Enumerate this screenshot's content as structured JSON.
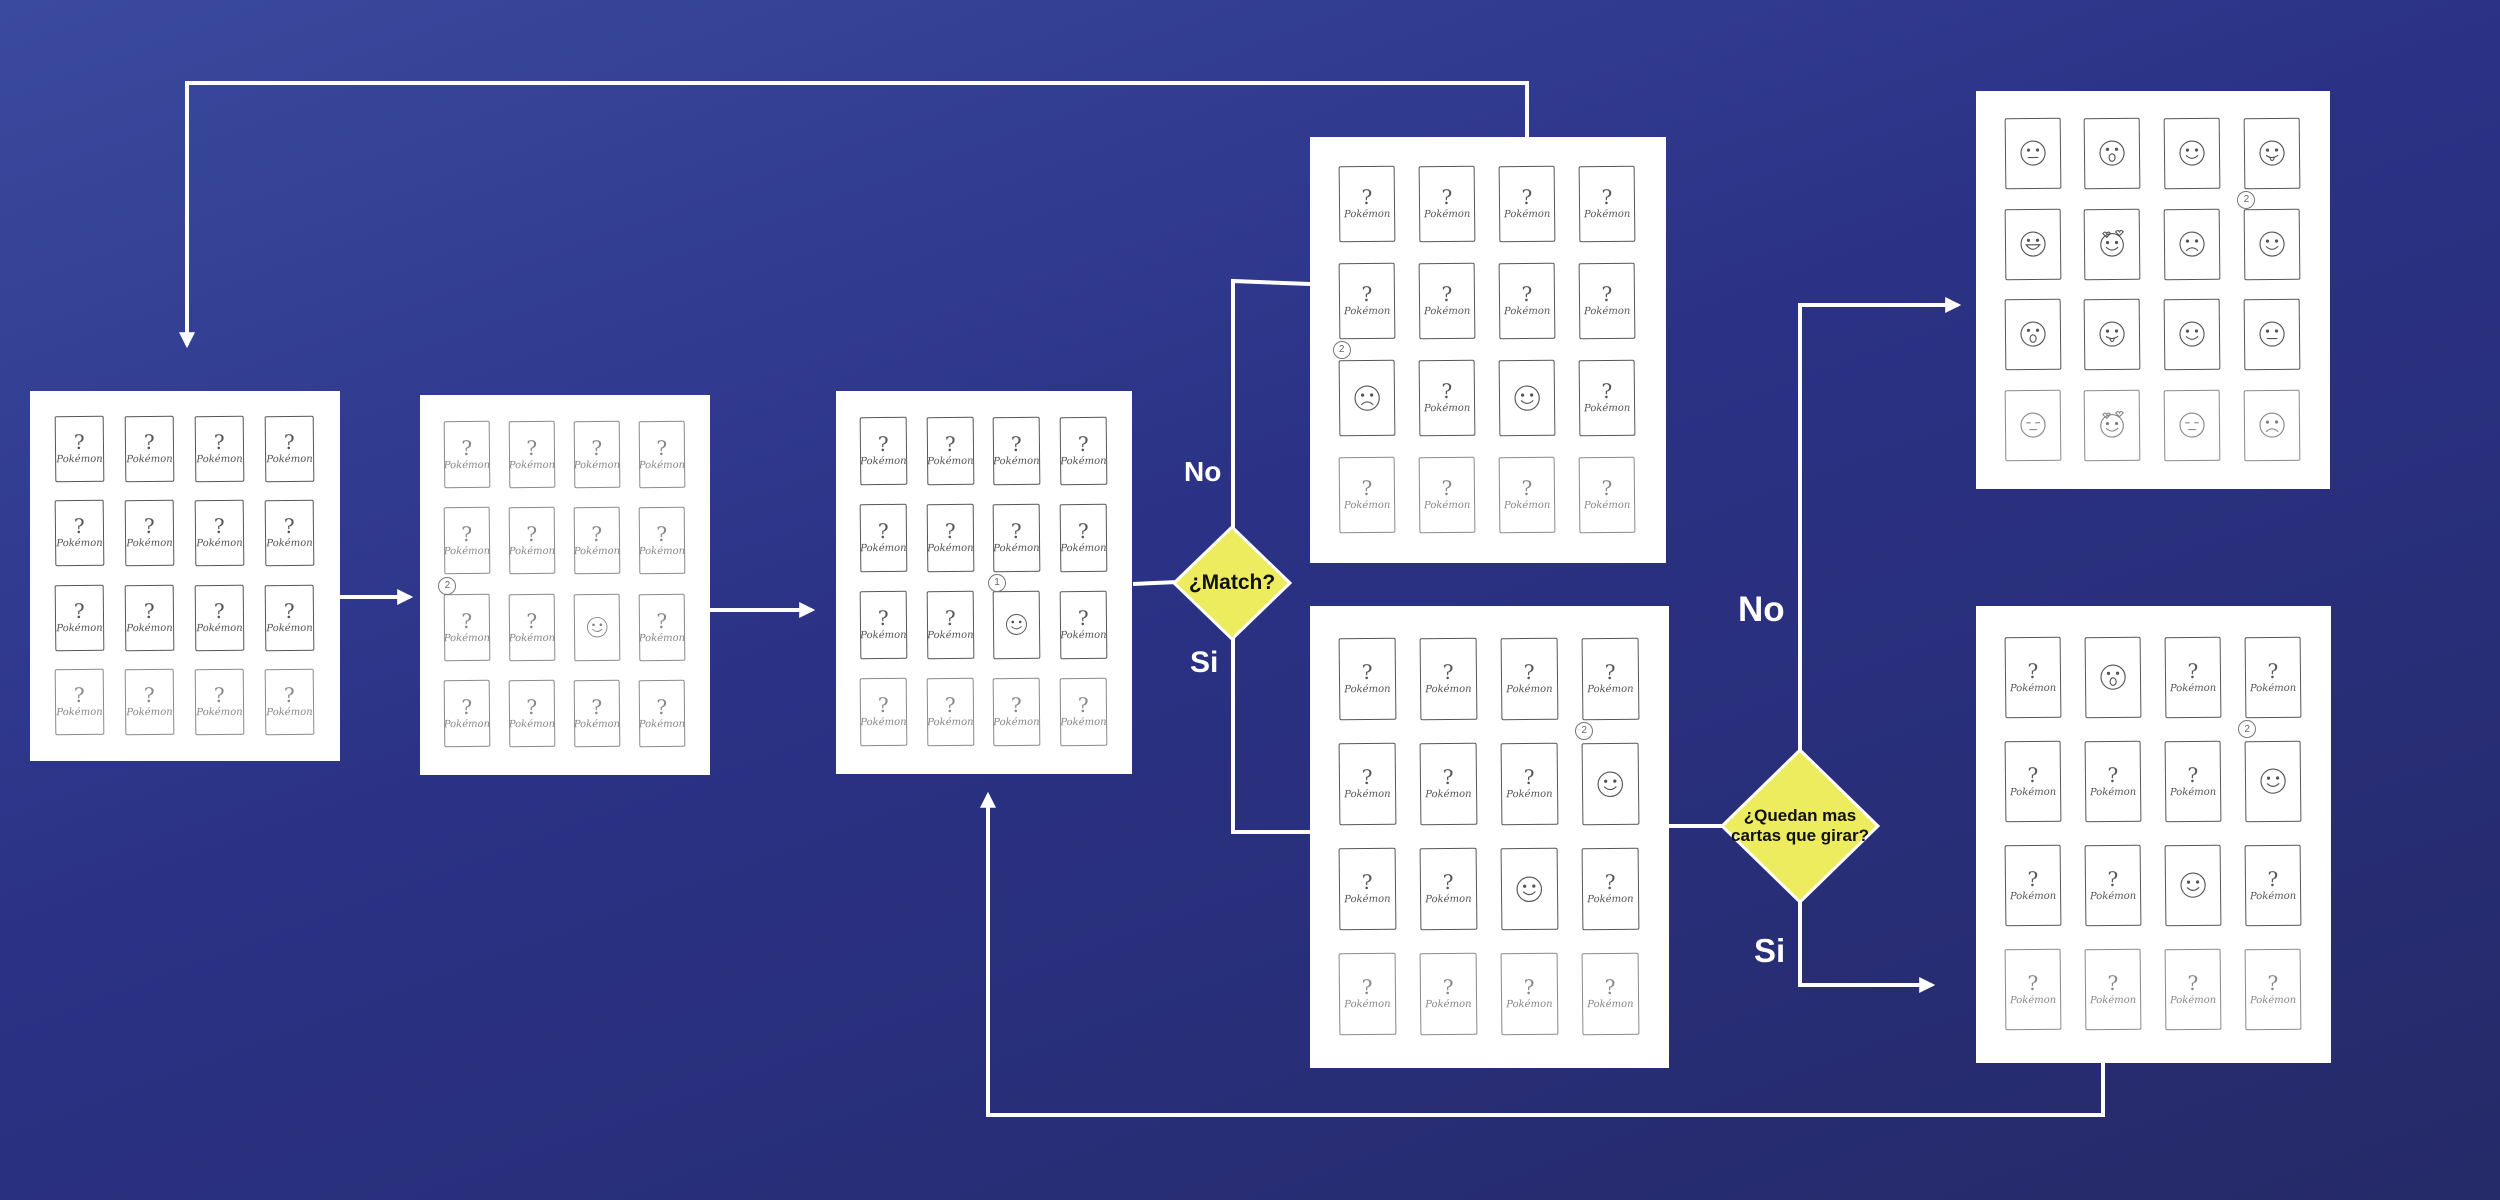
{
  "colors": {
    "background_top": "#3a4a9e",
    "background_bottom": "#252a68",
    "connector": "#ffffff",
    "decision_fill": "#ecec5e",
    "card_stroke": "#555555"
  },
  "card_label": "Pokémon",
  "card_symbol": "?",
  "decisions": {
    "match": "¿Match?",
    "remaining": "¿Quedan mas cartas que girar?"
  },
  "edge_labels": {
    "match_no": "No",
    "match_si": "Si",
    "remaining_no": "No",
    "remaining_si": "Si"
  },
  "panels": [
    {
      "id": "start",
      "faded": false,
      "cells": [
        "card",
        "card",
        "card",
        "card",
        "card",
        "card",
        "card",
        "card",
        "card",
        "card",
        "card",
        "card",
        "card",
        "card",
        "card",
        "card"
      ]
    },
    {
      "id": "first-flip",
      "faded": true,
      "cells": [
        "card",
        "card",
        "card",
        "card",
        "card",
        "card",
        "card",
        "card",
        "card",
        "card",
        "smile-icon",
        "card",
        "card",
        "card",
        "card",
        "card"
      ],
      "marks": [
        {
          "cell": 8,
          "text": "2"
        }
      ]
    },
    {
      "id": "second-flip",
      "faded": false,
      "cells": [
        "card",
        "card",
        "card",
        "card",
        "card",
        "card",
        "card",
        "card",
        "card",
        "card",
        "smile-icon",
        "card",
        "card",
        "card",
        "card",
        "card"
      ],
      "marks": [
        {
          "cell": 10,
          "text": "1"
        }
      ]
    },
    {
      "id": "no-match",
      "faded": false,
      "cells": [
        "card",
        "card",
        "card",
        "card",
        "card",
        "card",
        "card",
        "card",
        "frown-icon",
        "card",
        "smile-icon",
        "card",
        "card",
        "card",
        "card",
        "card"
      ],
      "marks": [
        {
          "cell": 8,
          "text": "2"
        }
      ]
    },
    {
      "id": "match",
      "faded": false,
      "cells": [
        "card",
        "card",
        "card",
        "card",
        "card",
        "card",
        "card",
        "smile-icon",
        "card",
        "card",
        "smile-icon",
        "card",
        "card",
        "card",
        "card",
        "card"
      ],
      "marks": [
        {
          "cell": 7,
          "text": "2"
        }
      ]
    },
    {
      "id": "all-revealed",
      "faded": false,
      "cells": [
        "neutral-icon",
        "surprised-icon",
        "smile-icon",
        "tongue-icon",
        "grin-icon",
        "love-icon",
        "frown-icon",
        "smile-icon",
        "surprised-icon",
        "tongue-icon",
        "smile-icon",
        "neutral-icon",
        "sleepy-icon",
        "love-icon",
        "sleepy-icon",
        "frown-icon"
      ],
      "marks": [
        {
          "cell": 7,
          "text": "2"
        }
      ]
    },
    {
      "id": "continue",
      "faded": false,
      "cells": [
        "card",
        "surprised-icon",
        "card",
        "card",
        "card",
        "card",
        "card",
        "smile-icon",
        "card",
        "card",
        "smile-icon",
        "card",
        "card",
        "card",
        "card",
        "card"
      ],
      "marks": [
        {
          "cell": 7,
          "text": "2"
        }
      ]
    }
  ]
}
